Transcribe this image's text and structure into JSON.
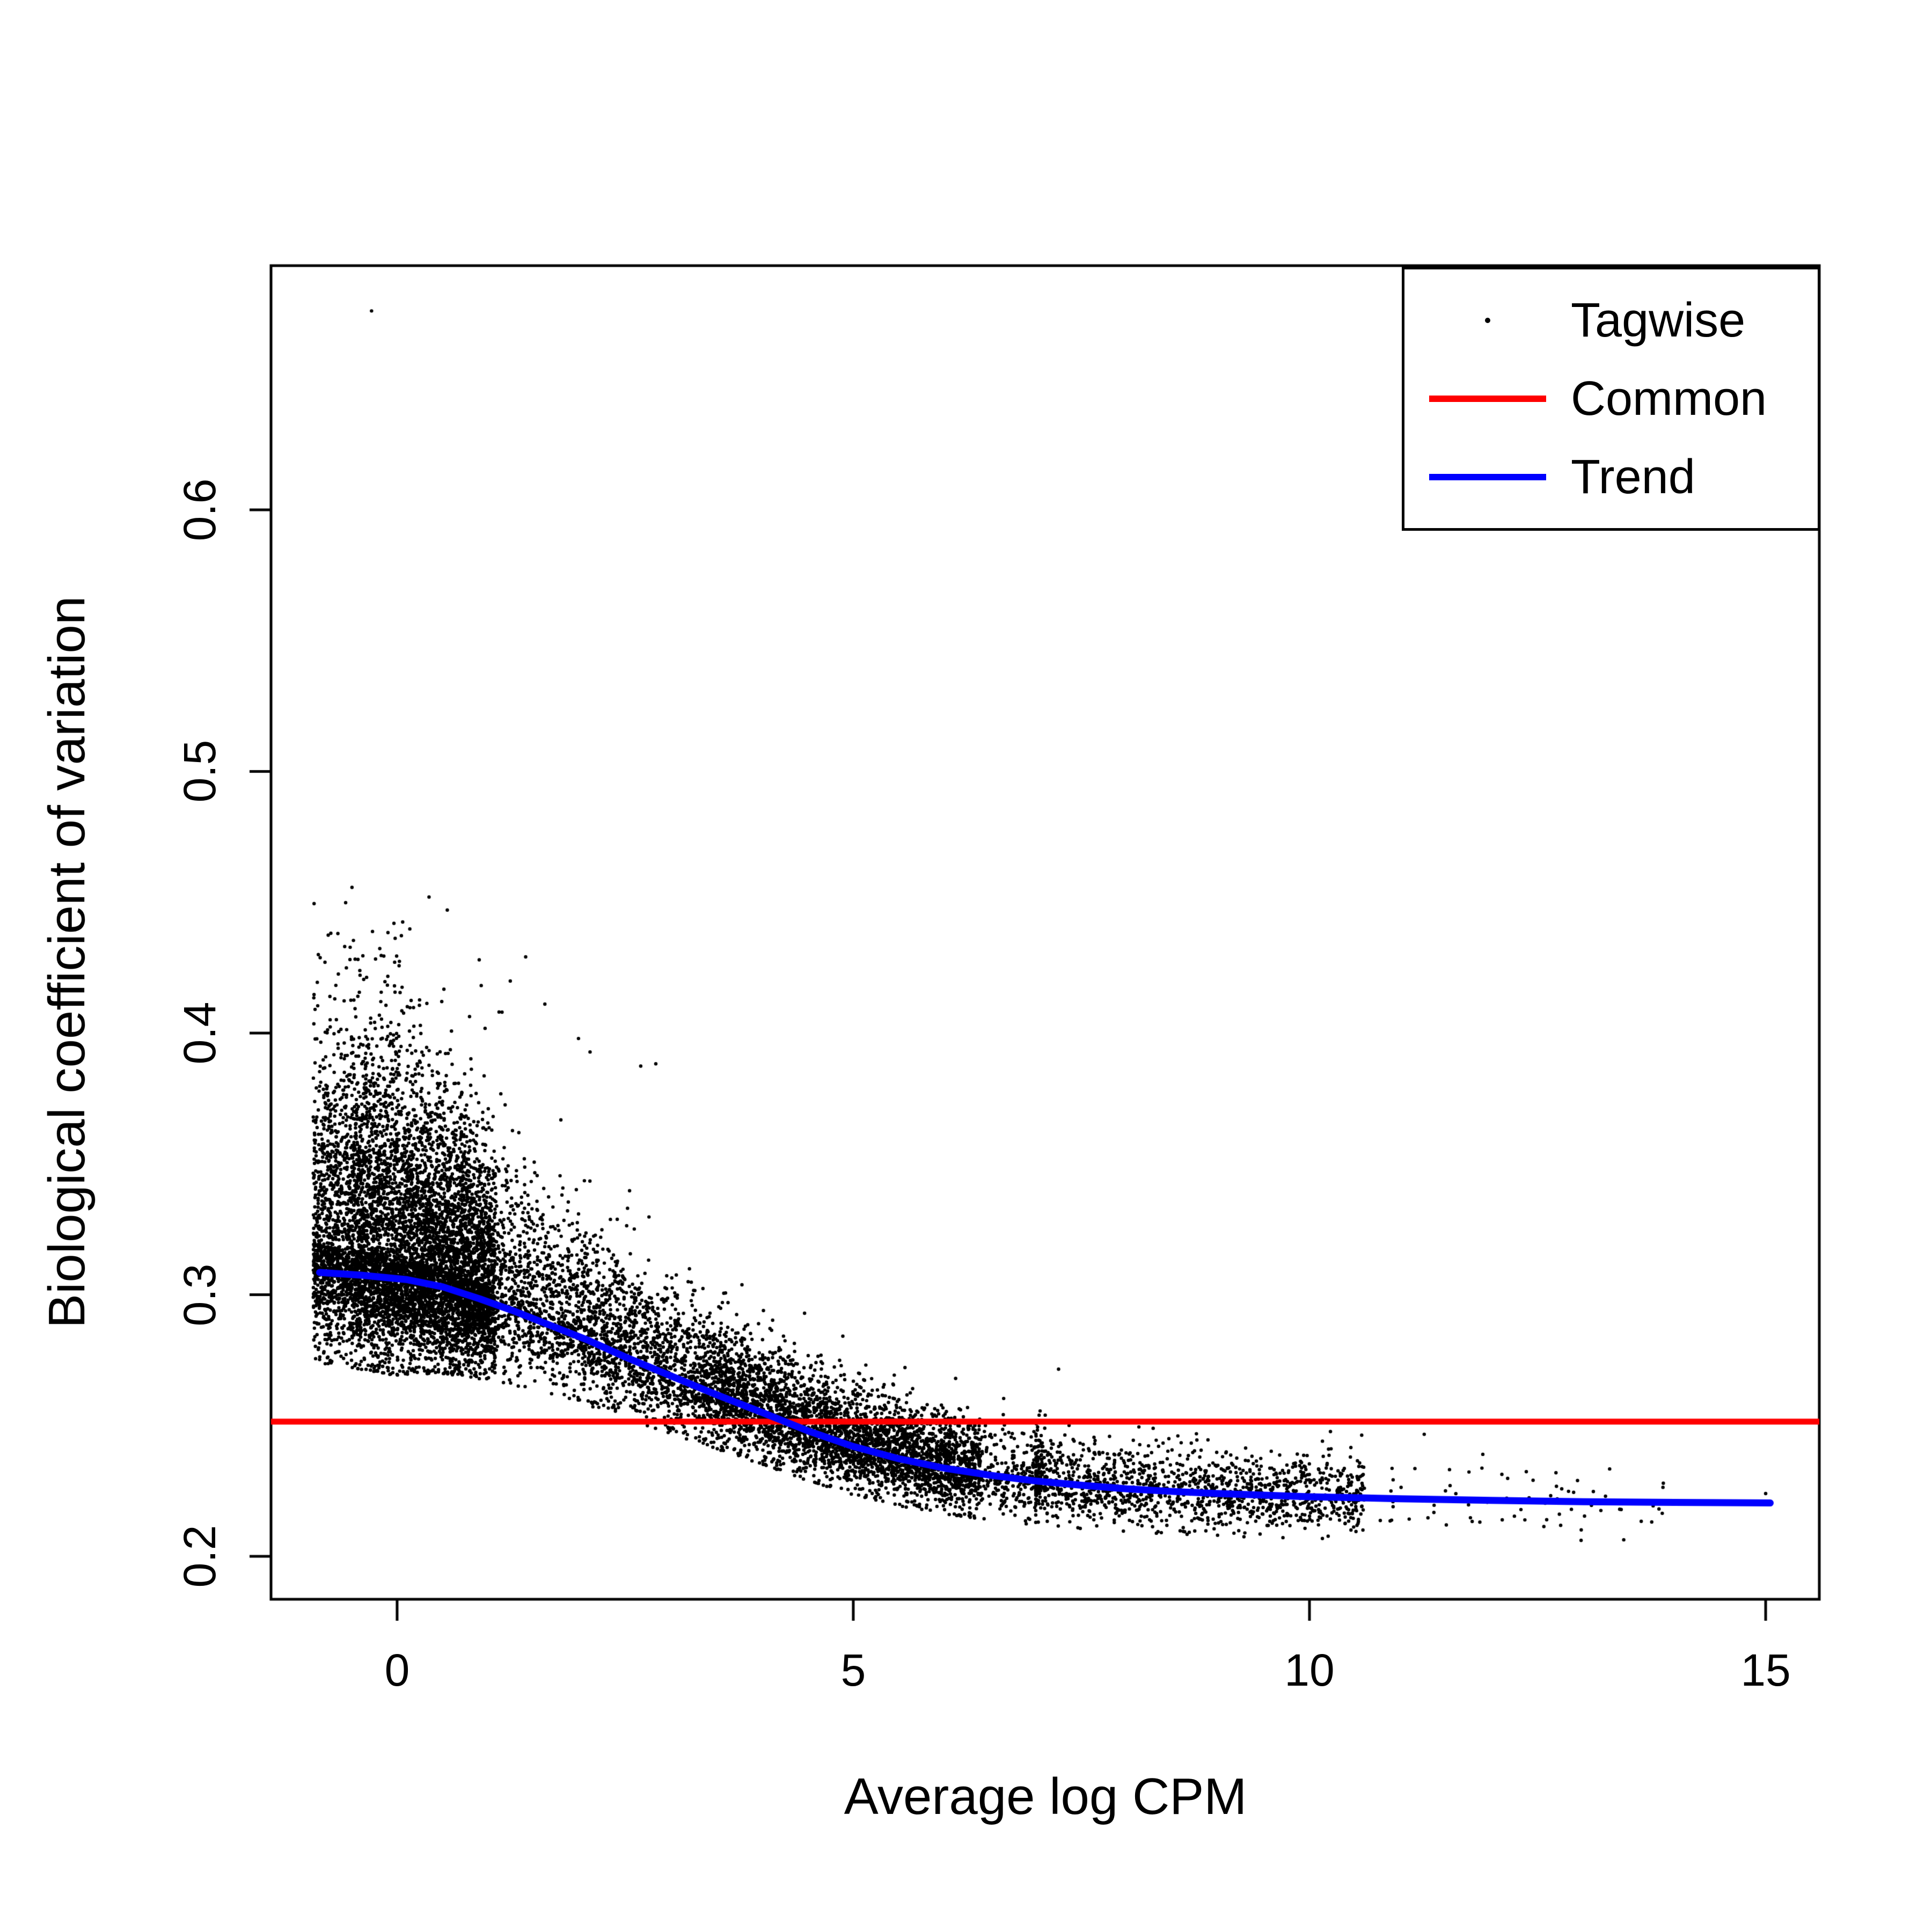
{
  "chart_data": {
    "type": "scatter",
    "title": "",
    "xlabel": "Average log CPM",
    "ylabel": "Biological coefficient of variation",
    "xlim": [
      -1.382,
      15.588
    ],
    "ylim": [
      0.1836,
      0.6933
    ],
    "x_ticks": [
      0,
      5,
      10,
      15
    ],
    "x_tick_labels": [
      "0",
      "5",
      "10",
      "15"
    ],
    "y_ticks": [
      0.2,
      0.3,
      0.4,
      0.5,
      0.6
    ],
    "y_tick_labels": [
      "0.2",
      "0.3",
      "0.4",
      "0.5",
      "0.6"
    ],
    "grid": false,
    "legend": {
      "position": "top-right",
      "entries": [
        {
          "label": "Tagwise",
          "type": "point",
          "color": "#000000"
        },
        {
          "label": "Common",
          "type": "line",
          "color": "#ff0000"
        },
        {
          "label": "Trend",
          "type": "line",
          "color": "#0000ff"
        }
      ]
    },
    "common_bcv": 0.2515,
    "trend": {
      "x": [
        -0.85,
        -0.4,
        0.1,
        0.5,
        0.9,
        1.3,
        1.7,
        2.1,
        2.5,
        3.0,
        3.5,
        4.0,
        4.5,
        5.0,
        5.5,
        6.0,
        6.5,
        7.0,
        7.5,
        8.0,
        8.5,
        9.0,
        9.5,
        10.0,
        10.5,
        11.0,
        12.0,
        13.0,
        14.0,
        15.05
      ],
      "y": [
        0.3085,
        0.3075,
        0.3058,
        0.303,
        0.2985,
        0.2935,
        0.288,
        0.2825,
        0.2762,
        0.269,
        0.2618,
        0.255,
        0.248,
        0.242,
        0.2373,
        0.2337,
        0.231,
        0.2288,
        0.2272,
        0.2258,
        0.2248,
        0.224,
        0.2234,
        0.2228,
        0.2224,
        0.222,
        0.2214,
        0.2209,
        0.2206,
        0.2204
      ]
    },
    "tagwise_scatter": {
      "n_points": 15000,
      "seed": 42,
      "x_range": [
        -0.92,
        13.9
      ],
      "center_model": "trend(x) + 0.008*exp(-x/3)",
      "sd_model": "0.0075 + 0.014*exp(-x/2.6)",
      "upper_skew_model": "1.0*exp(-x/2.5) + 0.15",
      "notable_outliers": [
        [
          -0.28,
          0.676
        ],
        [
          15.0,
          0.224
        ],
        [
          0.35,
          0.452
        ],
        [
          0.55,
          0.447
        ],
        [
          0.9,
          0.428
        ],
        [
          1.15,
          0.408
        ],
        [
          11.9,
          0.239
        ],
        [
          11.5,
          0.212
        ],
        [
          12.6,
          0.214
        ],
        [
          13.4,
          0.218
        ]
      ]
    },
    "colors": {
      "points": "#000000",
      "common_line": "#ff0000",
      "trend_line": "#0000ff",
      "background": "#ffffff",
      "frame": "#000000"
    }
  }
}
